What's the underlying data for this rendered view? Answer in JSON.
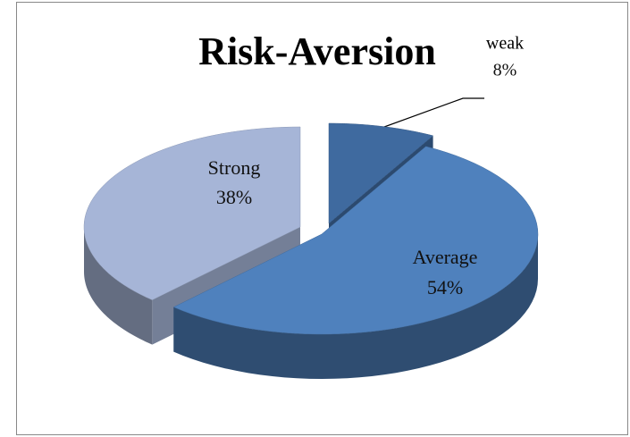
{
  "chart_data": {
    "type": "pie",
    "title": "Risk-Aversion",
    "categories": [
      "weak",
      "Average",
      "Strong"
    ],
    "values": [
      8,
      54,
      38
    ],
    "value_labels": [
      "8%",
      "54%",
      "38%"
    ],
    "colors": [
      "#3f6a9f",
      "#4f81bd",
      "#a6b5d7"
    ]
  }
}
